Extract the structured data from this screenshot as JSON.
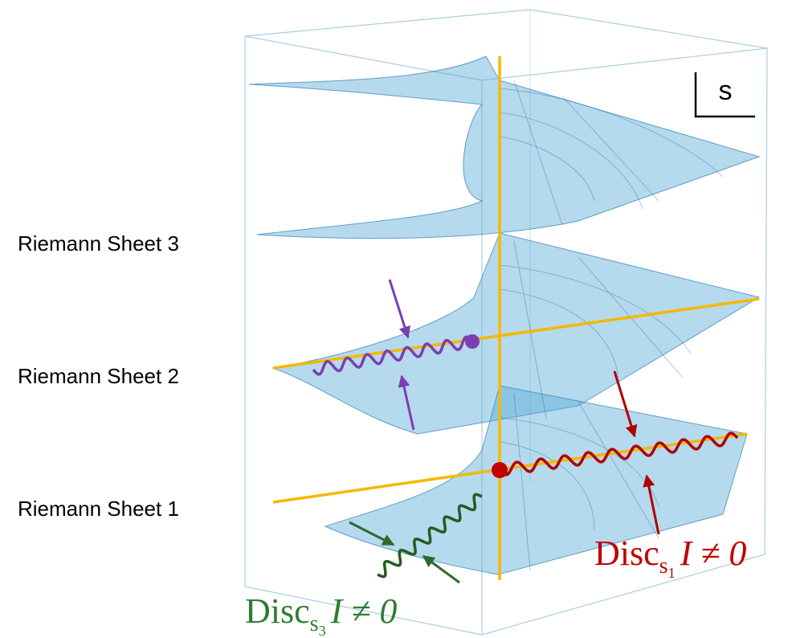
{
  "labels": {
    "sheet3": "Riemann Sheet 3",
    "sheet2": "Riemann Sheet 2",
    "sheet1": "Riemann Sheet 1",
    "plane": "s"
  },
  "disc_s1": {
    "main": "Disc",
    "sub_base": "s",
    "sub_index": "1",
    "rest": "I ≠ 0"
  },
  "disc_s3": {
    "main": "Disc",
    "sub_base": "s",
    "sub_index": "3",
    "rest": "I ≠ 0"
  }
}
